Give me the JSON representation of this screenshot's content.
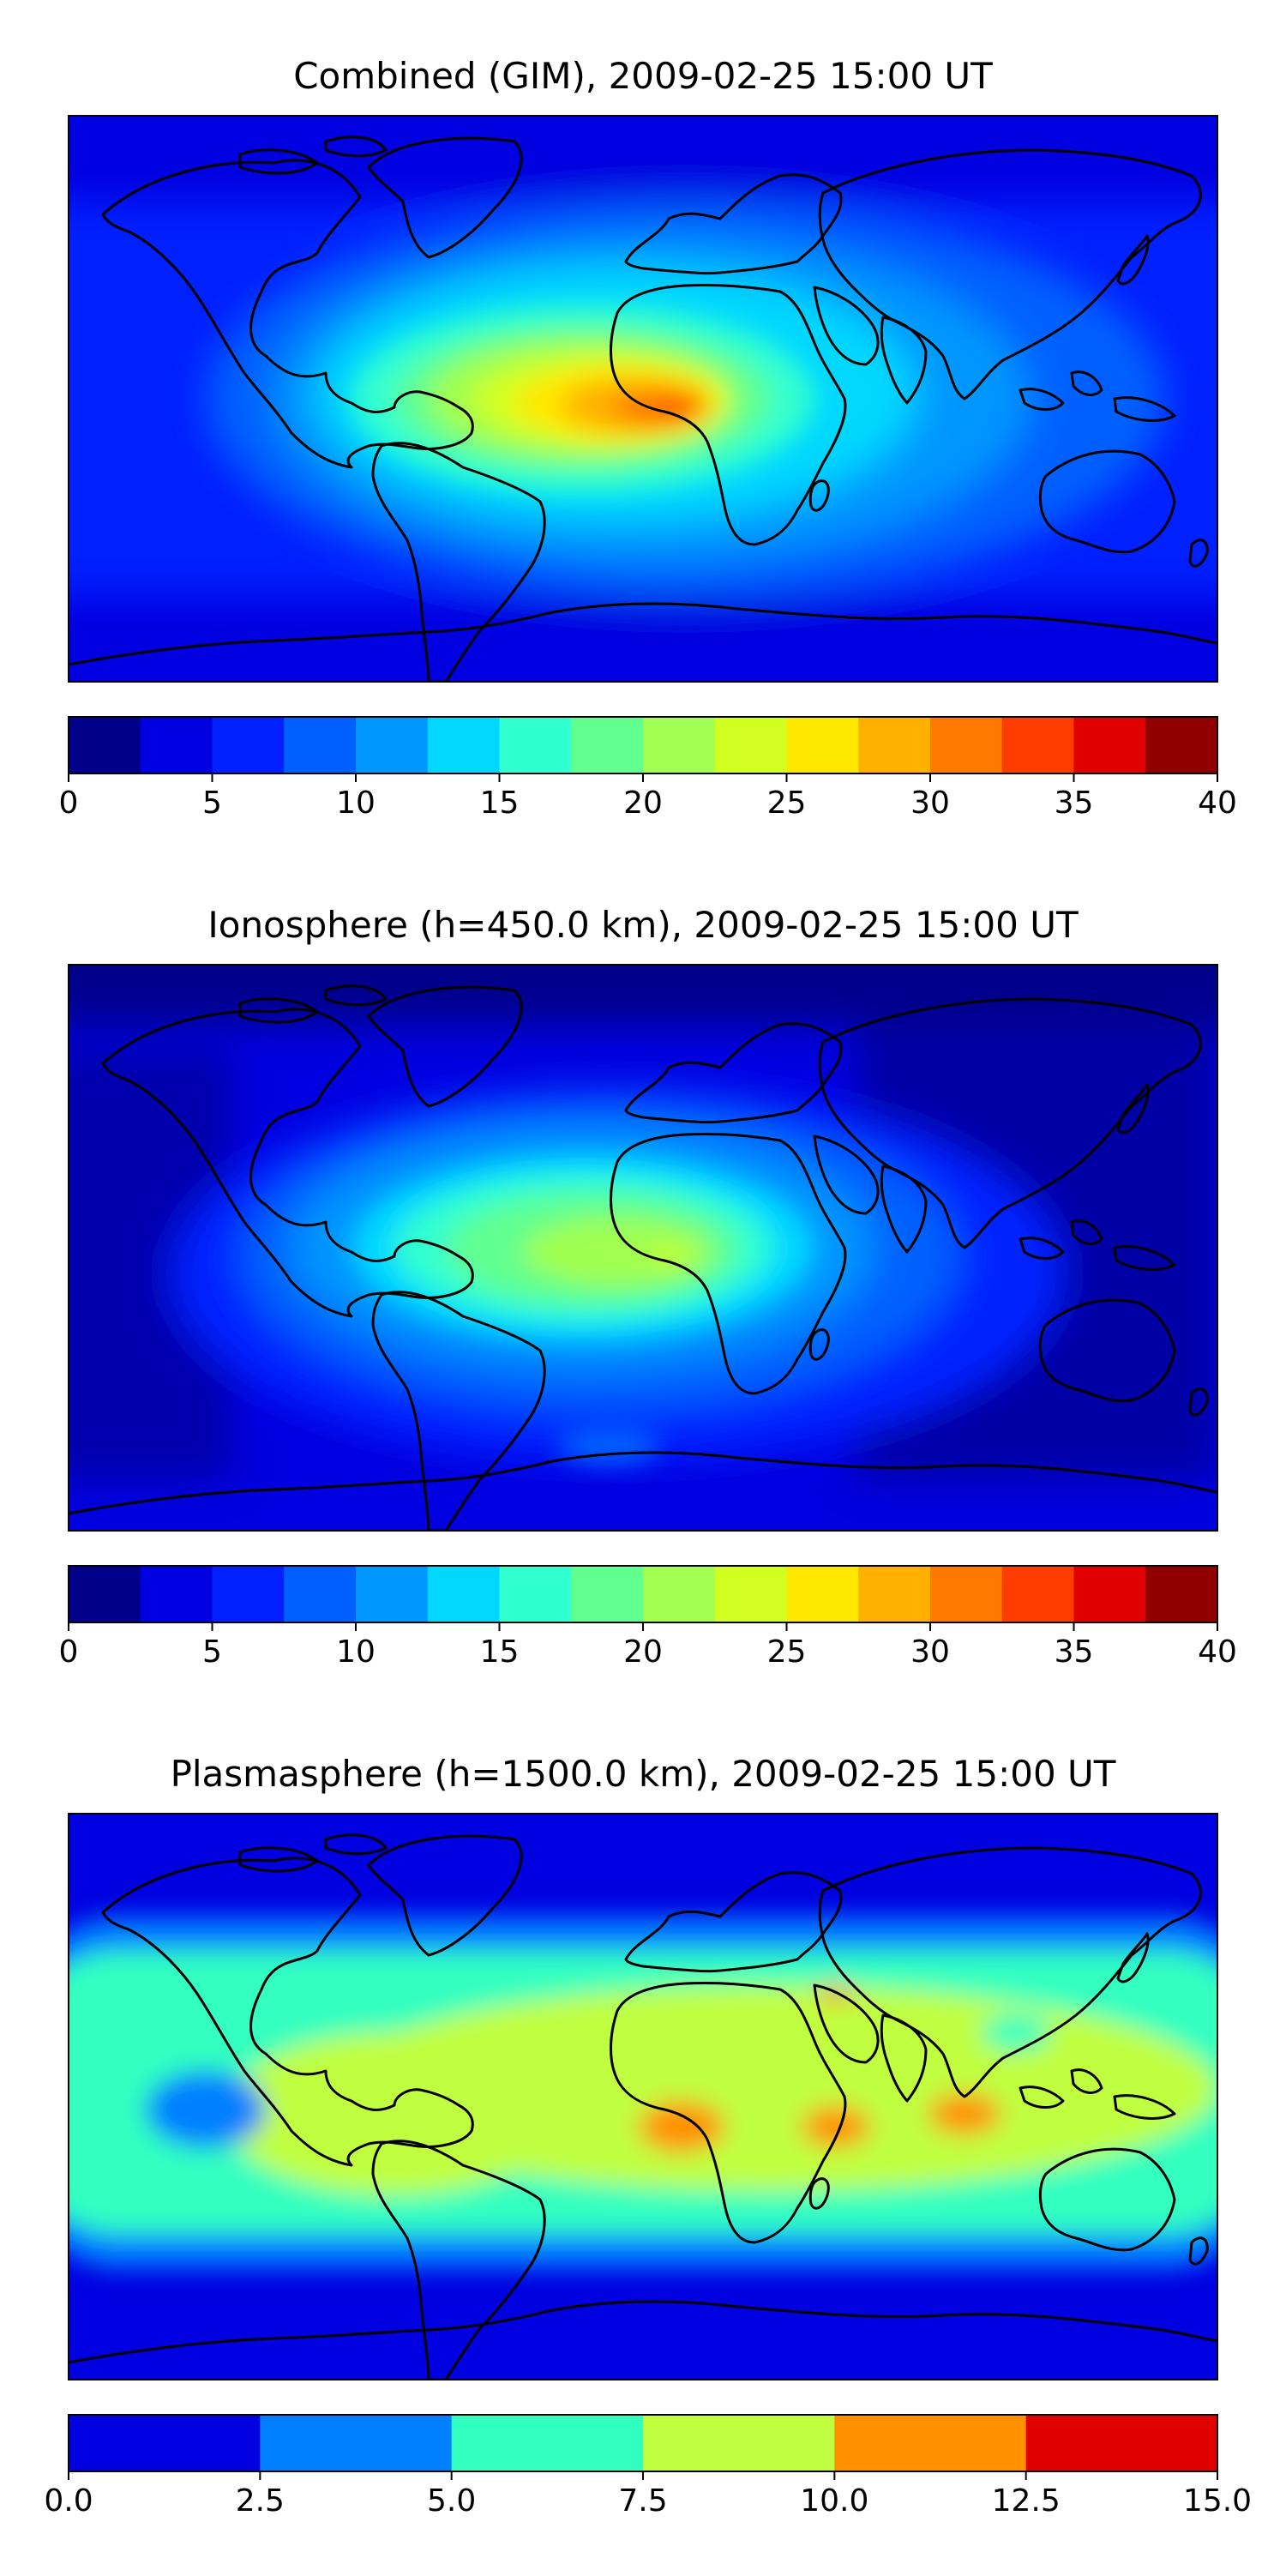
{
  "panels": [
    {
      "id": "combined",
      "title": "Combined (GIM), 2009-02-25 15:00 UT",
      "colorbar": {
        "colors": [
          "#00008b",
          "#0000e0",
          "#0020ff",
          "#0060ff",
          "#0096ff",
          "#00d8ff",
          "#30ffd0",
          "#60ff90",
          "#a0ff50",
          "#d0ff20",
          "#ffe800",
          "#ffb000",
          "#ff7800",
          "#ff3c00",
          "#e00000",
          "#900000"
        ],
        "ticks": [
          "0",
          "5",
          "10",
          "15",
          "20",
          "25",
          "30",
          "35",
          "40"
        ]
      }
    },
    {
      "id": "ionosphere",
      "title": "Ionosphere  (h=450.0 km), 2009-02-25 15:00 UT",
      "colorbar": {
        "colors": [
          "#00008b",
          "#0000e0",
          "#0020ff",
          "#0060ff",
          "#0096ff",
          "#00d8ff",
          "#30ffd0",
          "#60ff90",
          "#a0ff50",
          "#d0ff20",
          "#ffe800",
          "#ffb000",
          "#ff7800",
          "#ff3c00",
          "#e00000",
          "#900000"
        ],
        "ticks": [
          "0",
          "5",
          "10",
          "15",
          "20",
          "25",
          "30",
          "35",
          "40"
        ]
      }
    },
    {
      "id": "plasmasphere",
      "title": "Plasmasphere (h=1500.0 km), 2009-02-25 15:00 UT",
      "colorbar": {
        "colors": [
          "#0000e0",
          "#0080ff",
          "#30ffc0",
          "#c0ff40",
          "#ff9000",
          "#e00000"
        ],
        "ticks": [
          "0.0",
          "2.5",
          "5.0",
          "7.5",
          "10.0",
          "12.5",
          "15.0"
        ]
      }
    }
  ]
}
